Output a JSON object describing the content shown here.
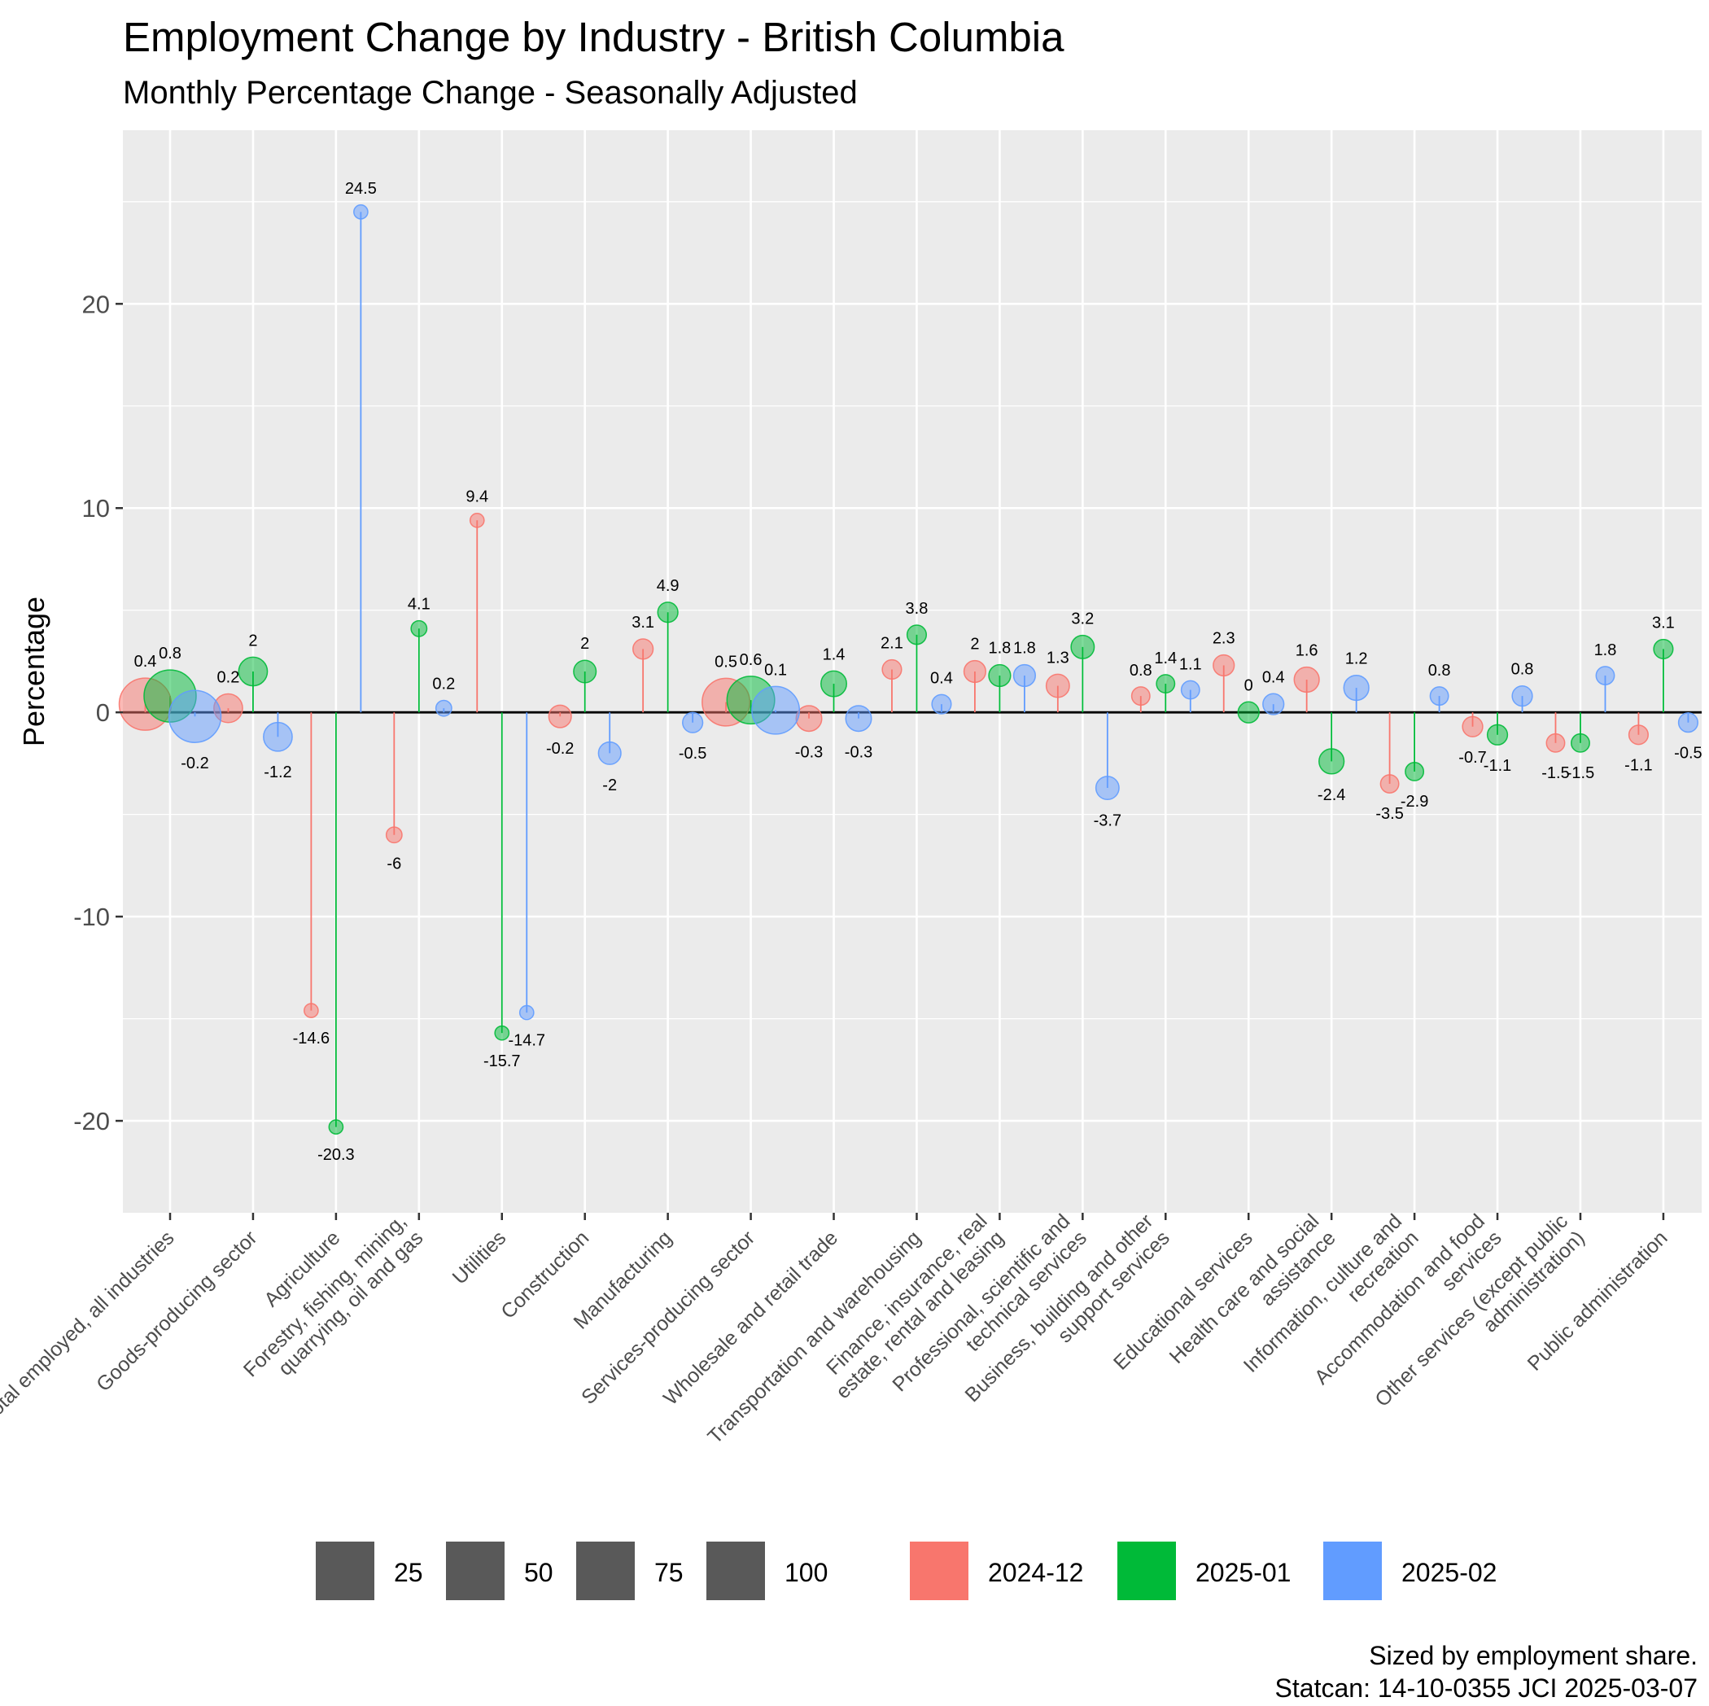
{
  "title": "Employment Change by Industry - British Columbia",
  "subtitle": "Monthly Percentage Change  - Seasonally Adjusted",
  "caption": [
    "Sized by employment share.",
    "Statcan: 14-10-0355 JCI 2025-03-07"
  ],
  "colors": {
    "2024-12": "#F8766D",
    "2025-01": "#00BA38",
    "2025-02": "#619CFF",
    "panel": "#EBEBEB",
    "grid": "#FFFFFF",
    "legend_size_key": "#595959"
  },
  "legend": {
    "size": {
      "labels": [
        "25",
        "50",
        "75",
        "100"
      ]
    },
    "colour": {
      "labels": [
        "2024-12",
        "2025-01",
        "2025-02"
      ]
    }
  },
  "chart_data": {
    "type": "scatter",
    "subtype": "lollipop / bubble (point size = employment share)",
    "title": "Employment Change by Industry - British Columbia",
    "subtitle": "Monthly Percentage Change  - Seasonally Adjusted",
    "xlabel": "",
    "ylabel": "Percentage",
    "ylim": [
      -24.5,
      28.5
    ],
    "yticks": [
      -20,
      -10,
      0,
      10,
      20
    ],
    "grid": true,
    "legend_position": "bottom",
    "categories": [
      "Total employed, all industries",
      "Goods-producing sector",
      "Agriculture",
      "Forestry, fishing, mining, quarrying, oil and gas",
      "Utilities",
      "Construction",
      "Manufacturing",
      "Services-producing sector",
      "Wholesale and retail trade",
      "Transportation and warehousing",
      "Finance, insurance, real estate, rental and leasing",
      "Professional, scientific and technical services",
      "Business, building and other support services",
      "Educational services",
      "Health care and social assistance",
      "Information, culture and recreation",
      "Accommodation and food services",
      "Other services (except public administration)",
      "Public administration"
    ],
    "category_labels": [
      [
        "Total employed, all industries"
      ],
      [
        "Goods-producing sector"
      ],
      [
        "Agriculture"
      ],
      [
        "Forestry, fishing, mining,",
        "quarrying, oil and gas"
      ],
      [
        "Utilities"
      ],
      [
        "Construction"
      ],
      [
        "Manufacturing"
      ],
      [
        "Services-producing sector"
      ],
      [
        "Wholesale and retail trade"
      ],
      [
        "Transportation and warehousing"
      ],
      [
        "Finance, insurance, real",
        "estate, rental and leasing"
      ],
      [
        "Professional, scientific and",
        "technical services"
      ],
      [
        "Business, building and other",
        "support services"
      ],
      [
        "Educational services"
      ],
      [
        "Health care and social",
        "assistance"
      ],
      [
        "Information, culture and",
        "recreation"
      ],
      [
        "Accommodation and food",
        "services"
      ],
      [
        "Other services (except public",
        "administration)"
      ],
      [
        "Public administration"
      ]
    ],
    "size_variable": [
      100,
      20,
      1,
      2,
      1,
      9,
      6,
      80,
      14,
      5,
      8,
      10,
      4,
      7,
      13,
      4,
      6,
      4,
      5
    ],
    "series": [
      {
        "name": "2024-12",
        "values": [
          0.4,
          0.2,
          -14.6,
          -6,
          9.4,
          -0.2,
          3.1,
          0.5,
          -0.3,
          2.1,
          2,
          1.3,
          0.8,
          2.3,
          1.6,
          -3.5,
          -0.7,
          -1.5,
          -1.1
        ],
        "labels": [
          "0.4",
          "0.2",
          "-14.6",
          "-6",
          "9.4",
          "-0.2",
          "3.1",
          "0.5",
          "-0.3",
          "2.1",
          "2",
          "1.3",
          "0.8",
          "2.3",
          "1.6",
          "-3.5",
          "-0.7",
          "-1.5",
          "-1.1"
        ]
      },
      {
        "name": "2025-01",
        "values": [
          0.8,
          2,
          -20.3,
          4.1,
          -15.7,
          2,
          4.9,
          0.6,
          1.4,
          3.8,
          1.8,
          3.2,
          1.4,
          0,
          -2.4,
          -2.9,
          -1.1,
          -1.5,
          3.1
        ],
        "labels": [
          "0.8",
          "2",
          "-20.3",
          "4.1",
          "-15.7",
          "2",
          "4.9",
          "0.6",
          "1.4",
          "3.8",
          "1.8",
          "3.2",
          "1.4",
          "0",
          "-2.4",
          "-2.9",
          "-1.1",
          "-1.5",
          "3.1"
        ]
      },
      {
        "name": "2025-02",
        "values": [
          -0.2,
          -1.2,
          24.5,
          0.2,
          -14.7,
          -2,
          -0.5,
          0.1,
          -0.3,
          0.4,
          1.8,
          -3.7,
          1.1,
          0.4,
          1.2,
          0.8,
          0.8,
          1.8,
          -0.5
        ],
        "labels": [
          "-0.2",
          "-1.2",
          "24.5",
          "0.2",
          "-14.7",
          "-2",
          "-0.5",
          "0.1",
          "-0.3",
          "0.4",
          "1.8",
          "-3.7",
          "1.1",
          "0.4",
          "1.2",
          "0.8",
          "0.8",
          "1.8",
          "-0.5"
        ]
      }
    ]
  }
}
